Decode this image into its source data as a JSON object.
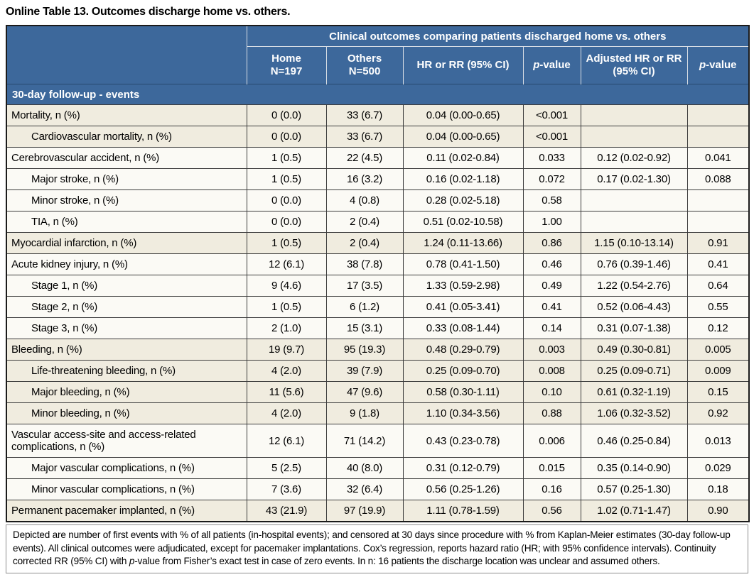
{
  "title": "Online Table 13. Outcomes discharge home vs. others.",
  "colors": {
    "header_blue": "#3d689b",
    "row_beige": "#f0ecdf",
    "row_white": "#fbfaf5",
    "header_divider": "#d9dee5",
    "grid_line": "#3c3c3c"
  },
  "table": {
    "span_header": "Clinical outcomes comparing patients discharged home vs. others",
    "group_header": "30-day follow-up - events",
    "columns": [
      {
        "lines": [
          "Home",
          "N=197"
        ]
      },
      {
        "lines": [
          "Others",
          "N=500"
        ]
      },
      {
        "lines": [
          "HR or RR (95% CI)"
        ]
      },
      {
        "italic_prefix": "p",
        "rest": "-value"
      },
      {
        "lines": [
          "Adjusted HR or RR",
          "(95% CI)"
        ]
      },
      {
        "italic_prefix": "p",
        "rest": "-value"
      }
    ],
    "rows": [
      {
        "label": "Mortality, n (%)",
        "indent": false,
        "shade": "b",
        "cells": [
          "0 (0.0)",
          "33 (6.7)",
          "0.04 (0.00-0.65)",
          "<0.001",
          "",
          ""
        ]
      },
      {
        "label": "Cardiovascular mortality, n (%)",
        "indent": true,
        "shade": "b",
        "cells": [
          "0 (0.0)",
          "33 (6.7)",
          "0.04 (0.00-0.65)",
          "<0.001",
          "",
          ""
        ]
      },
      {
        "label": "Cerebrovascular accident, n (%)",
        "indent": false,
        "shade": "w",
        "cells": [
          "1 (0.5)",
          "22 (4.5)",
          "0.11 (0.02-0.84)",
          "0.033",
          "0.12 (0.02-0.92)",
          "0.041"
        ]
      },
      {
        "label": "Major stroke, n (%)",
        "indent": true,
        "shade": "w",
        "cells": [
          "1 (0.5)",
          "16 (3.2)",
          "0.16 (0.02-1.18)",
          "0.072",
          "0.17 (0.02-1.30)",
          "0.088"
        ]
      },
      {
        "label": "Minor stroke, n (%)",
        "indent": true,
        "shade": "w",
        "cells": [
          "0 (0.0)",
          "4 (0.8)",
          "0.28 (0.02-5.18)",
          "0.58",
          "",
          ""
        ]
      },
      {
        "label": "TIA, n (%)",
        "indent": true,
        "shade": "w",
        "cells": [
          "0 (0.0)",
          "2 (0.4)",
          "0.51 (0.02-10.58)",
          "1.00",
          "",
          ""
        ]
      },
      {
        "label": "Myocardial infarction, n (%)",
        "indent": false,
        "shade": "b",
        "cells": [
          "1 (0.5)",
          "2 (0.4)",
          "1.24 (0.11-13.66)",
          "0.86",
          "1.15 (0.10-13.14)",
          "0.91"
        ]
      },
      {
        "label": "Acute kidney injury, n (%)",
        "indent": false,
        "shade": "w",
        "cells": [
          "12 (6.1)",
          "38 (7.8)",
          "0.78 (0.41-1.50)",
          "0.46",
          "0.76 (0.39-1.46)",
          "0.41"
        ]
      },
      {
        "label": "Stage 1, n (%)",
        "indent": true,
        "shade": "w",
        "cells": [
          "9 (4.6)",
          "17 (3.5)",
          "1.33 (0.59-2.98)",
          "0.49",
          "1.22 (0.54-2.76)",
          "0.64"
        ]
      },
      {
        "label": "Stage 2, n (%)",
        "indent": true,
        "shade": "w",
        "cells": [
          "1 (0.5)",
          "6 (1.2)",
          "0.41 (0.05-3.41)",
          "0.41",
          "0.52 (0.06-4.43)",
          "0.55"
        ]
      },
      {
        "label": "Stage 3, n (%)",
        "indent": true,
        "shade": "w",
        "cells": [
          "2 (1.0)",
          "15 (3.1)",
          "0.33 (0.08-1.44)",
          "0.14",
          "0.31 (0.07-1.38)",
          "0.12"
        ]
      },
      {
        "label": "Bleeding, n (%)",
        "indent": false,
        "shade": "b",
        "cells": [
          "19 (9.7)",
          "95 (19.3)",
          "0.48 (0.29-0.79)",
          "0.003",
          "0.49 (0.30-0.81)",
          "0.005"
        ]
      },
      {
        "label": "Life-threatening bleeding, n (%)",
        "indent": true,
        "shade": "b",
        "cells": [
          "4 (2.0)",
          "39 (7.9)",
          "0.25 (0.09-0.70)",
          "0.008",
          "0.25 (0.09-0.71)",
          "0.009"
        ]
      },
      {
        "label": "Major bleeding, n (%)",
        "indent": true,
        "shade": "b",
        "cells": [
          "11 (5.6)",
          "47 (9.6)",
          "0.58 (0.30-1.11)",
          "0.10",
          "0.61 (0.32-1.19)",
          "0.15"
        ]
      },
      {
        "label": "Minor bleeding, n (%)",
        "indent": true,
        "shade": "b",
        "cells": [
          "4 (2.0)",
          "9 (1.8)",
          "1.10 (0.34-3.56)",
          "0.88",
          "1.06 (0.32-3.52)",
          "0.92"
        ]
      },
      {
        "label": "Vascular access-site and access-related complications, n (%)",
        "indent": false,
        "shade": "w",
        "tall": true,
        "cells": [
          "12 (6.1)",
          "71 (14.2)",
          "0.43 (0.23-0.78)",
          "0.006",
          "0.46 (0.25-0.84)",
          "0.013"
        ]
      },
      {
        "label": "Major vascular complications, n (%)",
        "indent": true,
        "shade": "w",
        "cells": [
          "5 (2.5)",
          "40 (8.0)",
          "0.31 (0.12-0.79)",
          "0.015",
          "0.35 (0.14-0.90)",
          "0.029"
        ]
      },
      {
        "label": "Minor vascular complications, n (%)",
        "indent": true,
        "shade": "w",
        "cells": [
          "7 (3.6)",
          "32 (6.4)",
          "0.56 (0.25-1.26)",
          "0.16",
          "0.57 (0.25-1.30)",
          "0.18"
        ]
      },
      {
        "label": "Permanent pacemaker implanted, n (%)",
        "indent": false,
        "shade": "b",
        "cells": [
          "43 (21.9)",
          "97 (19.9)",
          "1.11 (0.78-1.59)",
          "0.56",
          "1.02 (0.71-1.47)",
          "0.90"
        ]
      }
    ],
    "footnote_parts": [
      {
        "t": "Depicted are number of first events with % of all patients (in-hospital events); and censored at 30 days since procedure with % from Kaplan-Meier estimates (30-day follow-up events). All clinical outcomes were adjudicated, except for pacemaker implantations. Cox’s regression, reports hazard ratio (HR; with 95% confidence intervals). Continuity corrected RR (95% CI) with "
      },
      {
        "t": "p",
        "i": true
      },
      {
        "t": "-value from Fisher’s exact test in case of zero events. In n: 16 patients the discharge location was unclear and assumed others."
      }
    ]
  }
}
